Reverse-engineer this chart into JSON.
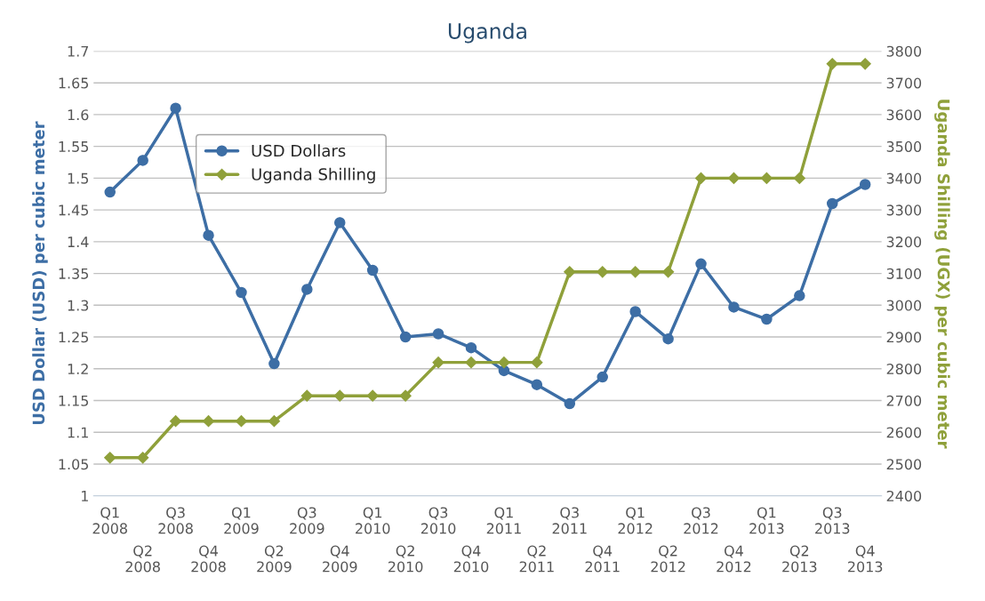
{
  "chart_data": {
    "type": "line",
    "title": "Uganda",
    "ylabel": "USD Dollar (USD) per cubic meter",
    "y2label": "Uganda Shilling (UGX) per cubic meter",
    "categories": [
      "Q1\n2008",
      "Q2\n2008",
      "Q3\n2008",
      "Q4\n2008",
      "Q1\n2009",
      "Q2\n2009",
      "Q3\n2009",
      "Q4\n2009",
      "Q1\n2010",
      "Q2\n2010",
      "Q3\n2010",
      "Q4\n2010",
      "Q1\n2011",
      "Q2\n2011",
      "Q3\n2011",
      "Q4\n2011",
      "Q1\n2012",
      "Q2\n2012",
      "Q3\n2012",
      "Q4\n2012",
      "Q1\n2013",
      "Q2\n2013",
      "Q3\n2013",
      "Q4\n2013"
    ],
    "series": [
      {
        "name": "USD Dollars",
        "color": "#3d6ea5",
        "marker": "circle",
        "values": [
          1.478,
          1.528,
          1.61,
          1.41,
          1.32,
          1.208,
          1.325,
          1.43,
          1.355,
          1.25,
          1.255,
          1.233,
          1.197,
          1.175,
          1.145,
          1.187,
          1.29,
          1.247,
          1.365,
          1.297,
          1.278,
          1.315,
          1.46,
          1.49
        ]
      },
      {
        "name": "Uganda Shilling",
        "color": "#8fa03a",
        "marker": "diamond",
        "axis": "y2",
        "values": [
          2520,
          2520,
          2635,
          2635,
          2635,
          2635,
          2715,
          2715,
          2715,
          2715,
          2820,
          2820,
          2820,
          2820,
          3105,
          3105,
          3105,
          3105,
          3400,
          3400,
          3400,
          3400,
          3760,
          3760
        ]
      }
    ],
    "ylim": [
      1,
      1.7
    ],
    "yticks": [
      1,
      1.05,
      1.1,
      1.15,
      1.2,
      1.25,
      1.3,
      1.35,
      1.4,
      1.45,
      1.5,
      1.55,
      1.6,
      1.65,
      1.7
    ],
    "y2lim": [
      2400,
      3800
    ],
    "y2ticks": [
      2400,
      2500,
      2600,
      2700,
      2800,
      2900,
      3000,
      3100,
      3200,
      3300,
      3400,
      3500,
      3600,
      3700,
      3800
    ],
    "grid": "y",
    "legend": "top left",
    "line_style": "solid"
  }
}
